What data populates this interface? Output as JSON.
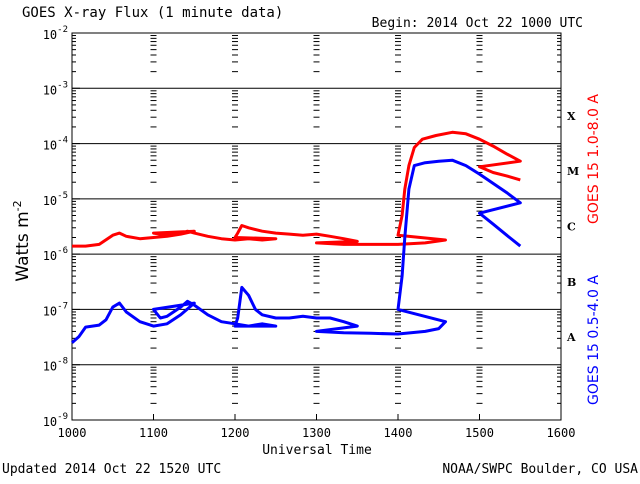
{
  "header": {
    "title": "GOES X-ray Flux (1 minute data)",
    "begin": "Begin: 2014 Oct 22 1000 UTC"
  },
  "footer": {
    "updated": "Updated 2014 Oct 22 1520 UTC",
    "credit": "NOAA/SWPC Boulder, CO USA"
  },
  "chart_data": {
    "type": "line",
    "title": "GOES X-ray Flux (1 minute data)",
    "xlabel": "Universal Time",
    "ylabel_base": "Watts m",
    "ylabel_exp": "-2",
    "xlim": [
      1000,
      1600
    ],
    "ylim_exp": [
      -9,
      -2
    ],
    "yscale": "log",
    "grid": "horizontal at each decade",
    "x_ticks": [
      "1000",
      "1100",
      "1200",
      "1300",
      "1400",
      "1500",
      "1600"
    ],
    "y_ticks": [
      {
        "base": "10",
        "exp": "-9"
      },
      {
        "base": "10",
        "exp": "-8"
      },
      {
        "base": "10",
        "exp": "-7"
      },
      {
        "base": "10",
        "exp": "-6"
      },
      {
        "base": "10",
        "exp": "-5"
      },
      {
        "base": "10",
        "exp": "-4"
      },
      {
        "base": "10",
        "exp": "-3"
      },
      {
        "base": "10",
        "exp": "-2"
      }
    ],
    "flare_classes": [
      "A",
      "B",
      "C",
      "M",
      "X"
    ],
    "series": [
      {
        "name": "GOES 15 1.0-8.0 A",
        "color": "#ff0000",
        "points": [
          [
            "1000",
            1.4e-06
          ],
          [
            "1010",
            1.4e-06
          ],
          [
            "1020",
            1.5e-06
          ],
          [
            "1030",
            2.2e-06
          ],
          [
            "1035",
            2.4e-06
          ],
          [
            "1040",
            2.1e-06
          ],
          [
            "1050",
            1.9e-06
          ],
          [
            "1060",
            2e-06
          ],
          [
            "1070",
            2.1e-06
          ],
          [
            "1080",
            2.3e-06
          ],
          [
            "1090",
            2.6e-06
          ],
          [
            "1100",
            2.4e-06
          ],
          [
            "1110",
            2.2e-06
          ],
          [
            "1120",
            2.4e-06
          ],
          [
            "1125",
            2.6e-06
          ],
          [
            "1130",
            2.4e-06
          ],
          [
            "1140",
            2.1e-06
          ],
          [
            "1150",
            1.9e-06
          ],
          [
            "1160",
            1.8e-06
          ],
          [
            "1170",
            1.9e-06
          ],
          [
            "1180",
            1.8e-06
          ],
          [
            "1190",
            1.9e-06
          ],
          [
            "1200",
            2e-06
          ],
          [
            "1202",
            2.4e-06
          ],
          [
            "1205",
            3.3e-06
          ],
          [
            "1210",
            3e-06
          ],
          [
            "1220",
            2.6e-06
          ],
          [
            "1230",
            2.4e-06
          ],
          [
            "1240",
            2.3e-06
          ],
          [
            "1250",
            2.2e-06
          ],
          [
            "1260",
            2.3e-06
          ],
          [
            "1270",
            2.1e-06
          ],
          [
            "1280",
            1.9e-06
          ],
          [
            "1290",
            1.7e-06
          ],
          [
            "1300",
            1.6e-06
          ],
          [
            "1320",
            1.5e-06
          ],
          [
            "1340",
            1.5e-06
          ],
          [
            "1360",
            1.5e-06
          ],
          [
            "1380",
            1.6e-06
          ],
          [
            "1395",
            1.8e-06
          ],
          [
            "1400",
            2.2e-06
          ],
          [
            "1403",
            5e-06
          ],
          [
            "1405",
            1.5e-05
          ],
          [
            "1408",
            4e-05
          ],
          [
            "1412",
            8.5e-05
          ],
          [
            "1418",
            0.00012
          ],
          [
            "1428",
            0.00014
          ],
          [
            "1440",
            0.00016
          ],
          [
            "1450",
            0.00015
          ],
          [
            "1460",
            0.00012
          ],
          [
            "1470",
            9e-05
          ],
          [
            "1480",
            6.5e-05
          ],
          [
            "1490",
            4.8e-05
          ],
          [
            "1500",
            3.8e-05
          ],
          [
            "1510",
            3e-05
          ],
          [
            "1520",
            2.6e-05
          ],
          [
            "1530",
            2.2e-05
          ]
        ]
      },
      {
        "name": "GOES 15 0.5-4.0 A",
        "color": "#0000ff",
        "points": [
          [
            "1000",
            2.5e-08
          ],
          [
            "1005",
            3.2e-08
          ],
          [
            "1010",
            4.8e-08
          ],
          [
            "1020",
            5.2e-08
          ],
          [
            "1025",
            6.5e-08
          ],
          [
            "1030",
            1.1e-07
          ],
          [
            "1035",
            1.3e-07
          ],
          [
            "1040",
            9e-08
          ],
          [
            "1050",
            6e-08
          ],
          [
            "1060",
            5e-08
          ],
          [
            "1070",
            5.5e-08
          ],
          [
            "1080",
            8e-08
          ],
          [
            "1090",
            1.3e-07
          ],
          [
            "1100",
            1e-07
          ],
          [
            "1105",
            7e-08
          ],
          [
            "1110",
            7.5e-08
          ],
          [
            "1120",
            1.1e-07
          ],
          [
            "1125",
            1.4e-07
          ],
          [
            "1130",
            1.2e-07
          ],
          [
            "1140",
            8e-08
          ],
          [
            "1150",
            6e-08
          ],
          [
            "1160",
            5.5e-08
          ],
          [
            "1170",
            5e-08
          ],
          [
            "1180",
            5.5e-08
          ],
          [
            "1190",
            5e-08
          ],
          [
            "1200",
            5e-08
          ],
          [
            "1202",
            7e-08
          ],
          [
            "1205",
            2.5e-07
          ],
          [
            "1210",
            1.8e-07
          ],
          [
            "1215",
            1e-07
          ],
          [
            "1220",
            8e-08
          ],
          [
            "1230",
            7e-08
          ],
          [
            "1240",
            7e-08
          ],
          [
            "1250",
            7.5e-08
          ],
          [
            "1260",
            7e-08
          ],
          [
            "1270",
            7e-08
          ],
          [
            "1280",
            6e-08
          ],
          [
            "1290",
            5e-08
          ],
          [
            "1300",
            4e-08
          ],
          [
            "1320",
            3.8e-08
          ],
          [
            "1340",
            3.7e-08
          ],
          [
            "1360",
            3.6e-08
          ],
          [
            "1380",
            4e-08
          ],
          [
            "1390",
            4.5e-08
          ],
          [
            "1395",
            6e-08
          ],
          [
            "1400",
            1e-07
          ],
          [
            "1403",
            4e-07
          ],
          [
            "1405",
            2e-06
          ],
          [
            "1408",
            1.5e-05
          ],
          [
            "1412",
            4e-05
          ],
          [
            "1420",
            4.5e-05
          ],
          [
            "1430",
            4.8e-05
          ],
          [
            "1440",
            5e-05
          ],
          [
            "1450",
            4e-05
          ],
          [
            "1460",
            2.8e-05
          ],
          [
            "1470",
            1.9e-05
          ],
          [
            "1480",
            1.3e-05
          ],
          [
            "1490",
            8.5e-06
          ],
          [
            "1500",
            5.5e-06
          ],
          [
            "1510",
            3.5e-06
          ],
          [
            "1520",
            2.2e-06
          ],
          [
            "1530",
            1.4e-06
          ]
        ]
      }
    ]
  }
}
